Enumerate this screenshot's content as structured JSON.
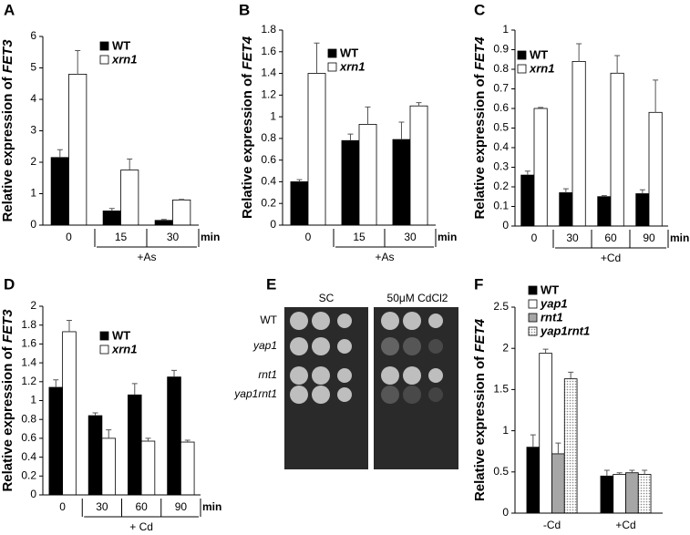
{
  "chart_data": [
    {
      "type": "bar",
      "panel": "A",
      "ylabel": "Relative expression of ",
      "ylabel_gene": "FET3",
      "categories": [
        "0",
        "15",
        "30"
      ],
      "x_unit": "min",
      "group_label": "+As",
      "ylim": [
        0,
        6
      ],
      "yticks": [
        0,
        1,
        2,
        3,
        4,
        5,
        6
      ],
      "series": [
        {
          "name": "WT",
          "color": "#000000",
          "values": [
            2.15,
            0.45,
            0.15
          ],
          "errors": [
            0.25,
            0.08,
            0.03
          ]
        },
        {
          "name": "xrn1",
          "color": "#ffffff",
          "values": [
            4.8,
            1.75,
            0.8
          ],
          "errors": [
            0.75,
            0.35,
            0.02
          ]
        }
      ]
    },
    {
      "type": "bar",
      "panel": "B",
      "ylabel": "Relative expression of ",
      "ylabel_gene": "FET4",
      "categories": [
        "0",
        "15",
        "30"
      ],
      "x_unit": "min",
      "group_label": "+As",
      "ylim": [
        0,
        1.8
      ],
      "yticks": [
        0,
        0.2,
        0.4,
        0.6,
        0.8,
        1,
        1.2,
        1.4,
        1.6,
        1.8
      ],
      "series": [
        {
          "name": "WT",
          "color": "#000000",
          "values": [
            0.4,
            0.78,
            0.79
          ],
          "errors": [
            0.02,
            0.06,
            0.16
          ]
        },
        {
          "name": "xrn1",
          "color": "#ffffff",
          "values": [
            1.4,
            0.93,
            1.1
          ],
          "errors": [
            0.28,
            0.16,
            0.03
          ]
        }
      ]
    },
    {
      "type": "bar",
      "panel": "C",
      "ylabel": "Relative expression of ",
      "ylabel_gene": "FET4",
      "categories": [
        "0",
        "30",
        "60",
        "90"
      ],
      "x_unit": "min",
      "group_label": "+Cd",
      "ylim": [
        0,
        1
      ],
      "yticks": [
        0,
        0.1,
        0.2,
        0.3,
        0.4,
        0.5,
        0.6,
        0.7,
        0.8,
        0.9,
        1
      ],
      "series": [
        {
          "name": "WT",
          "color": "#000000",
          "values": [
            0.26,
            0.17,
            0.15,
            0.165
          ],
          "errors": [
            0.02,
            0.02,
            0.005,
            0.02
          ]
        },
        {
          "name": "xrn1",
          "color": "#ffffff",
          "values": [
            0.6,
            0.84,
            0.78,
            0.58
          ],
          "errors": [
            0.005,
            0.09,
            0.09,
            0.165
          ]
        }
      ]
    },
    {
      "type": "bar",
      "panel": "D",
      "ylabel": "Relative expression of ",
      "ylabel_gene": "FET3",
      "categories": [
        "0",
        "30",
        "60",
        "90"
      ],
      "x_unit": "min",
      "group_label": "+ Cd",
      "ylim": [
        0,
        2
      ],
      "yticks": [
        0,
        0.2,
        0.4,
        0.6,
        0.8,
        1,
        1.2,
        1.4,
        1.6,
        1.8,
        2
      ],
      "series": [
        {
          "name": "WT",
          "color": "#000000",
          "values": [
            1.14,
            0.84,
            1.06,
            1.25
          ],
          "errors": [
            0.08,
            0.03,
            0.12,
            0.07
          ]
        },
        {
          "name": "xrn1",
          "color": "#ffffff",
          "values": [
            1.73,
            0.6,
            0.57,
            0.56
          ],
          "errors": [
            0.12,
            0.09,
            0.03,
            0.02
          ]
        }
      ]
    },
    {
      "type": "bar",
      "panel": "F",
      "ylabel": "Relative expression of ",
      "ylabel_gene": "FET4",
      "categories": [
        "-Cd",
        "+Cd"
      ],
      "ylim": [
        0,
        2.5
      ],
      "yticks": [
        0,
        0.5,
        1,
        1.5,
        2,
        2.5
      ],
      "series": [
        {
          "name": "WT",
          "color": "#000000",
          "values": [
            0.8,
            0.45
          ],
          "errors": [
            0.15,
            0.07
          ]
        },
        {
          "name": "yap1",
          "color": "#ffffff",
          "values": [
            1.94,
            0.47
          ],
          "errors": [
            0.05,
            0.02
          ]
        },
        {
          "name": "rnt1",
          "color": "#a6a6a6",
          "values": [
            0.72,
            0.49
          ],
          "errors": [
            0.13,
            0.03
          ]
        },
        {
          "name": "yap1rnt1",
          "color": "#d0d0d0",
          "pattern": "dots",
          "values": [
            1.63,
            0.47
          ],
          "errors": [
            0.08,
            0.05
          ]
        }
      ]
    }
  ],
  "spot_assay": {
    "panel": "E",
    "columns": [
      "SC",
      "50μM CdCl2"
    ],
    "rows": [
      "WT",
      "yap1",
      "rnt1",
      "yap1rnt1"
    ]
  }
}
